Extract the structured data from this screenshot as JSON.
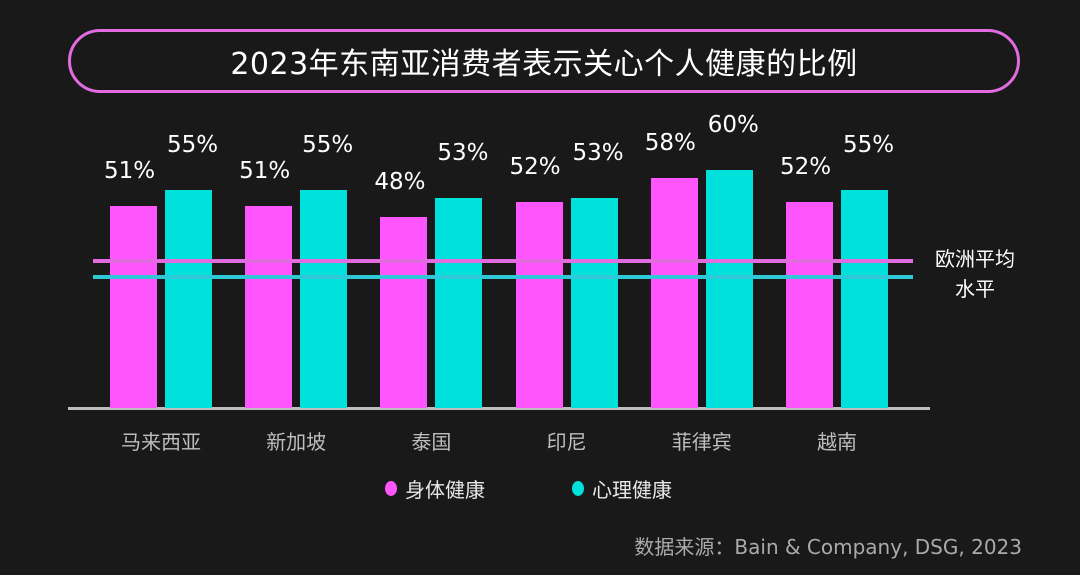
{
  "title": "2023年东南亚消费者表示关心个人健康的比例",
  "colors": {
    "physical": "#ff55ff",
    "mental": "#00e1dc",
    "ref_physical": "#e36be0",
    "ref_mental": "#2ec8d6",
    "background": "#191919"
  },
  "reference_label": "欧洲平均水平",
  "reference_label_lines": [
    "欧洲平均",
    "水平"
  ],
  "legend": {
    "physical": "身体健康",
    "mental": "心理健康"
  },
  "source": "数据来源：Bain & Company, DSG, 2023",
  "chart_data": {
    "type": "bar",
    "title": "2023年东南亚消费者表示关心个人健康的比例",
    "categories": [
      "马来西亚",
      "新加坡",
      "泰国",
      "印尼",
      "菲律宾",
      "越南"
    ],
    "series": [
      {
        "name": "身体健康",
        "values": [
          51,
          51,
          48,
          52,
          58,
          52
        ],
        "labels": [
          "51%",
          "51%",
          "48%",
          "52%",
          "58%",
          "52%"
        ]
      },
      {
        "name": "心理健康",
        "values": [
          55,
          55,
          53,
          53,
          60,
          55
        ],
        "labels": [
          "55%",
          "55%",
          "53%",
          "53%",
          "60%",
          "55%"
        ]
      }
    ],
    "reference_lines": [
      {
        "name": "欧洲平均水平 (身体健康)",
        "approx_value": 37
      },
      {
        "name": "欧洲平均水平 (心理健康)",
        "approx_value": 33
      }
    ],
    "xlabel": "",
    "ylabel": "",
    "legend_position": "bottom",
    "grid": false
  }
}
